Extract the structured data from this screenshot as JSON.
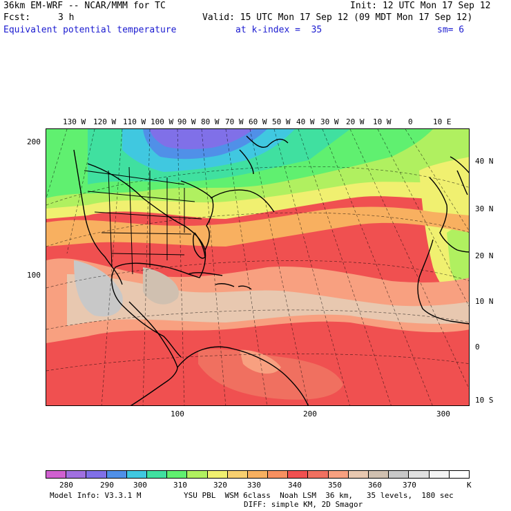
{
  "header": {
    "model_title": "36km EM-WRF -- NCAR/MMM for TC",
    "init": "Init: 12 UTC Mon 17 Sep 12",
    "fcst_label": "Fcst:",
    "fcst_value": "3 h",
    "valid": "Valid: 15 UTC Mon 17 Sep 12 (09 MDT Mon 17 Sep 12)",
    "field_name": "Equivalent potential temperature",
    "k_index": "at k-index =  35",
    "smoothing": "sm= 6"
  },
  "map": {
    "top_lon_labels": [
      "130 W",
      "120 W",
      "110 W",
      "100 W",
      "90 W",
      "80 W",
      "70 W",
      "60 W",
      "50 W",
      "40 W",
      "30 W",
      "20 W",
      "10 W",
      "0",
      "10 E"
    ],
    "right_lat_labels": [
      "40 N",
      "30 N",
      "20 N",
      "10 N",
      "0",
      "10 S"
    ],
    "left_y_labels": [
      "200",
      "100"
    ],
    "bottom_x_labels": [
      "100",
      "200",
      "300"
    ]
  },
  "colorbar": {
    "colors": [
      "#d060d0",
      "#a070e0",
      "#8070e8",
      "#5090e8",
      "#40c8e0",
      "#40e0a0",
      "#60f070",
      "#b0f060",
      "#f0f070",
      "#f8d070",
      "#f8b060",
      "#f89060",
      "#f05050",
      "#f07060",
      "#f8a080",
      "#e8c8b0",
      "#d0c0b0",
      "#c8c8c8",
      "#e0e0e0",
      "#f4f4f4",
      "#ffffff"
    ],
    "labels": [
      "280",
      "290",
      "300",
      "310",
      "320",
      "330",
      "340",
      "350",
      "360",
      "370"
    ],
    "unit": "K"
  },
  "footer": {
    "model_info": "Model Info: V3.3.1 M",
    "physics": "YSU PBL  WSM 6class  Noah LSM  36 km,   35 levels,  180 sec",
    "diffusion": "DIFF: simple KM, 2D Smagor"
  }
}
